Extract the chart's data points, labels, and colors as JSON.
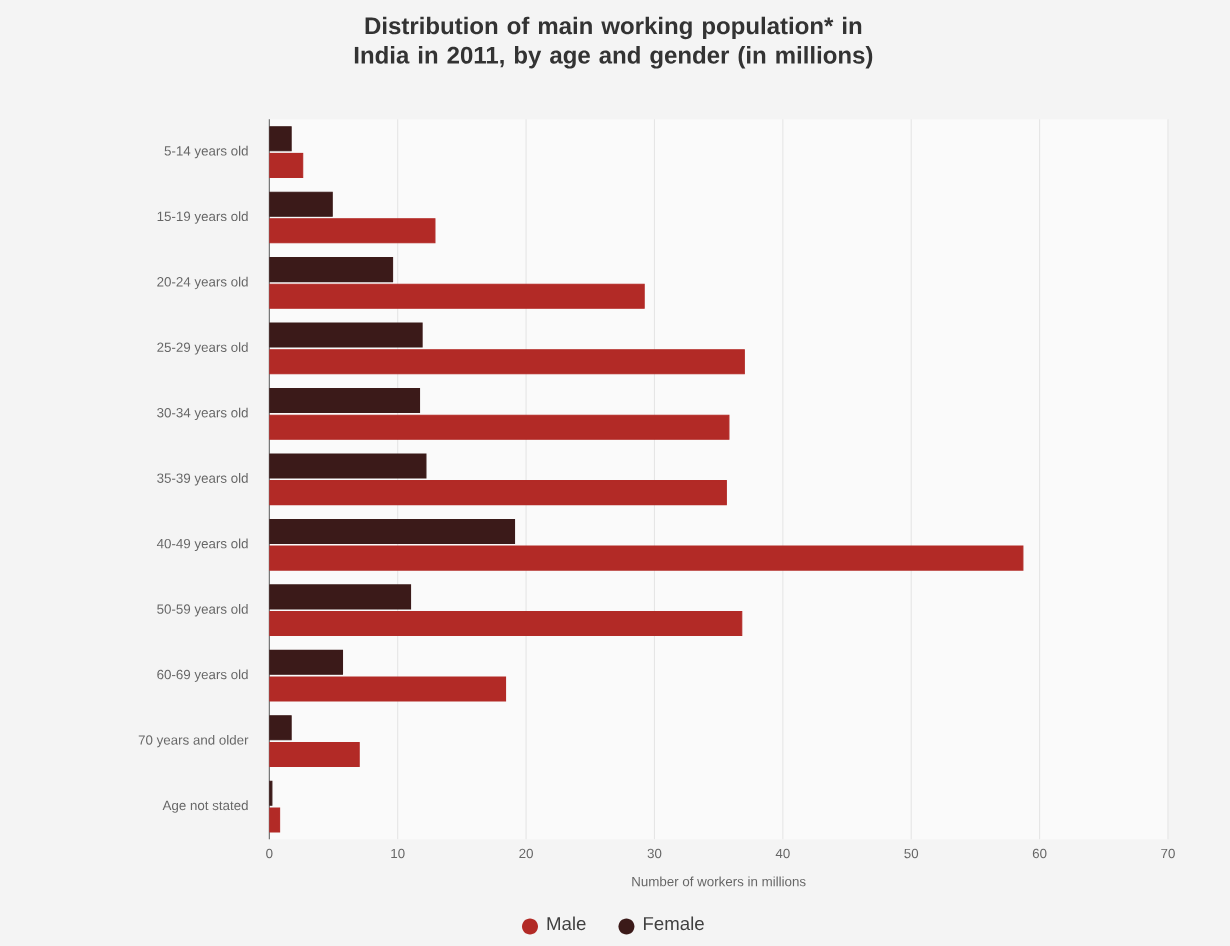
{
  "chart_data": {
    "type": "bar",
    "orientation": "horizontal",
    "title": "Distribution of main working population* in India in 2011, by age and gender (in millions)",
    "xlabel": "Number of workers in millions",
    "categories": [
      "5-14 years old",
      "15-19 years old",
      "20-24 years old",
      "25-29 years old",
      "30-34 years old",
      "35-39 years old",
      "40-49 years old",
      "50-59 years old",
      "60-69 years old",
      "70 years and older",
      "Age not stated"
    ],
    "series": [
      {
        "name": "Male",
        "color": "#b22a26",
        "values": [
          2.6,
          12.9,
          29.2,
          37.0,
          35.8,
          35.6,
          58.7,
          36.8,
          18.4,
          7.0,
          0.8
        ]
      },
      {
        "name": "Female",
        "color": "#3b1a19",
        "values": [
          1.7,
          4.9,
          9.6,
          11.9,
          11.7,
          12.2,
          19.1,
          11.0,
          5.7,
          1.7,
          0.2
        ]
      }
    ],
    "xlim": [
      0,
      70
    ],
    "xticks": [
      0,
      10,
      20,
      30,
      40,
      50,
      60,
      70
    ],
    "grid": "x",
    "legend": "bottom"
  }
}
